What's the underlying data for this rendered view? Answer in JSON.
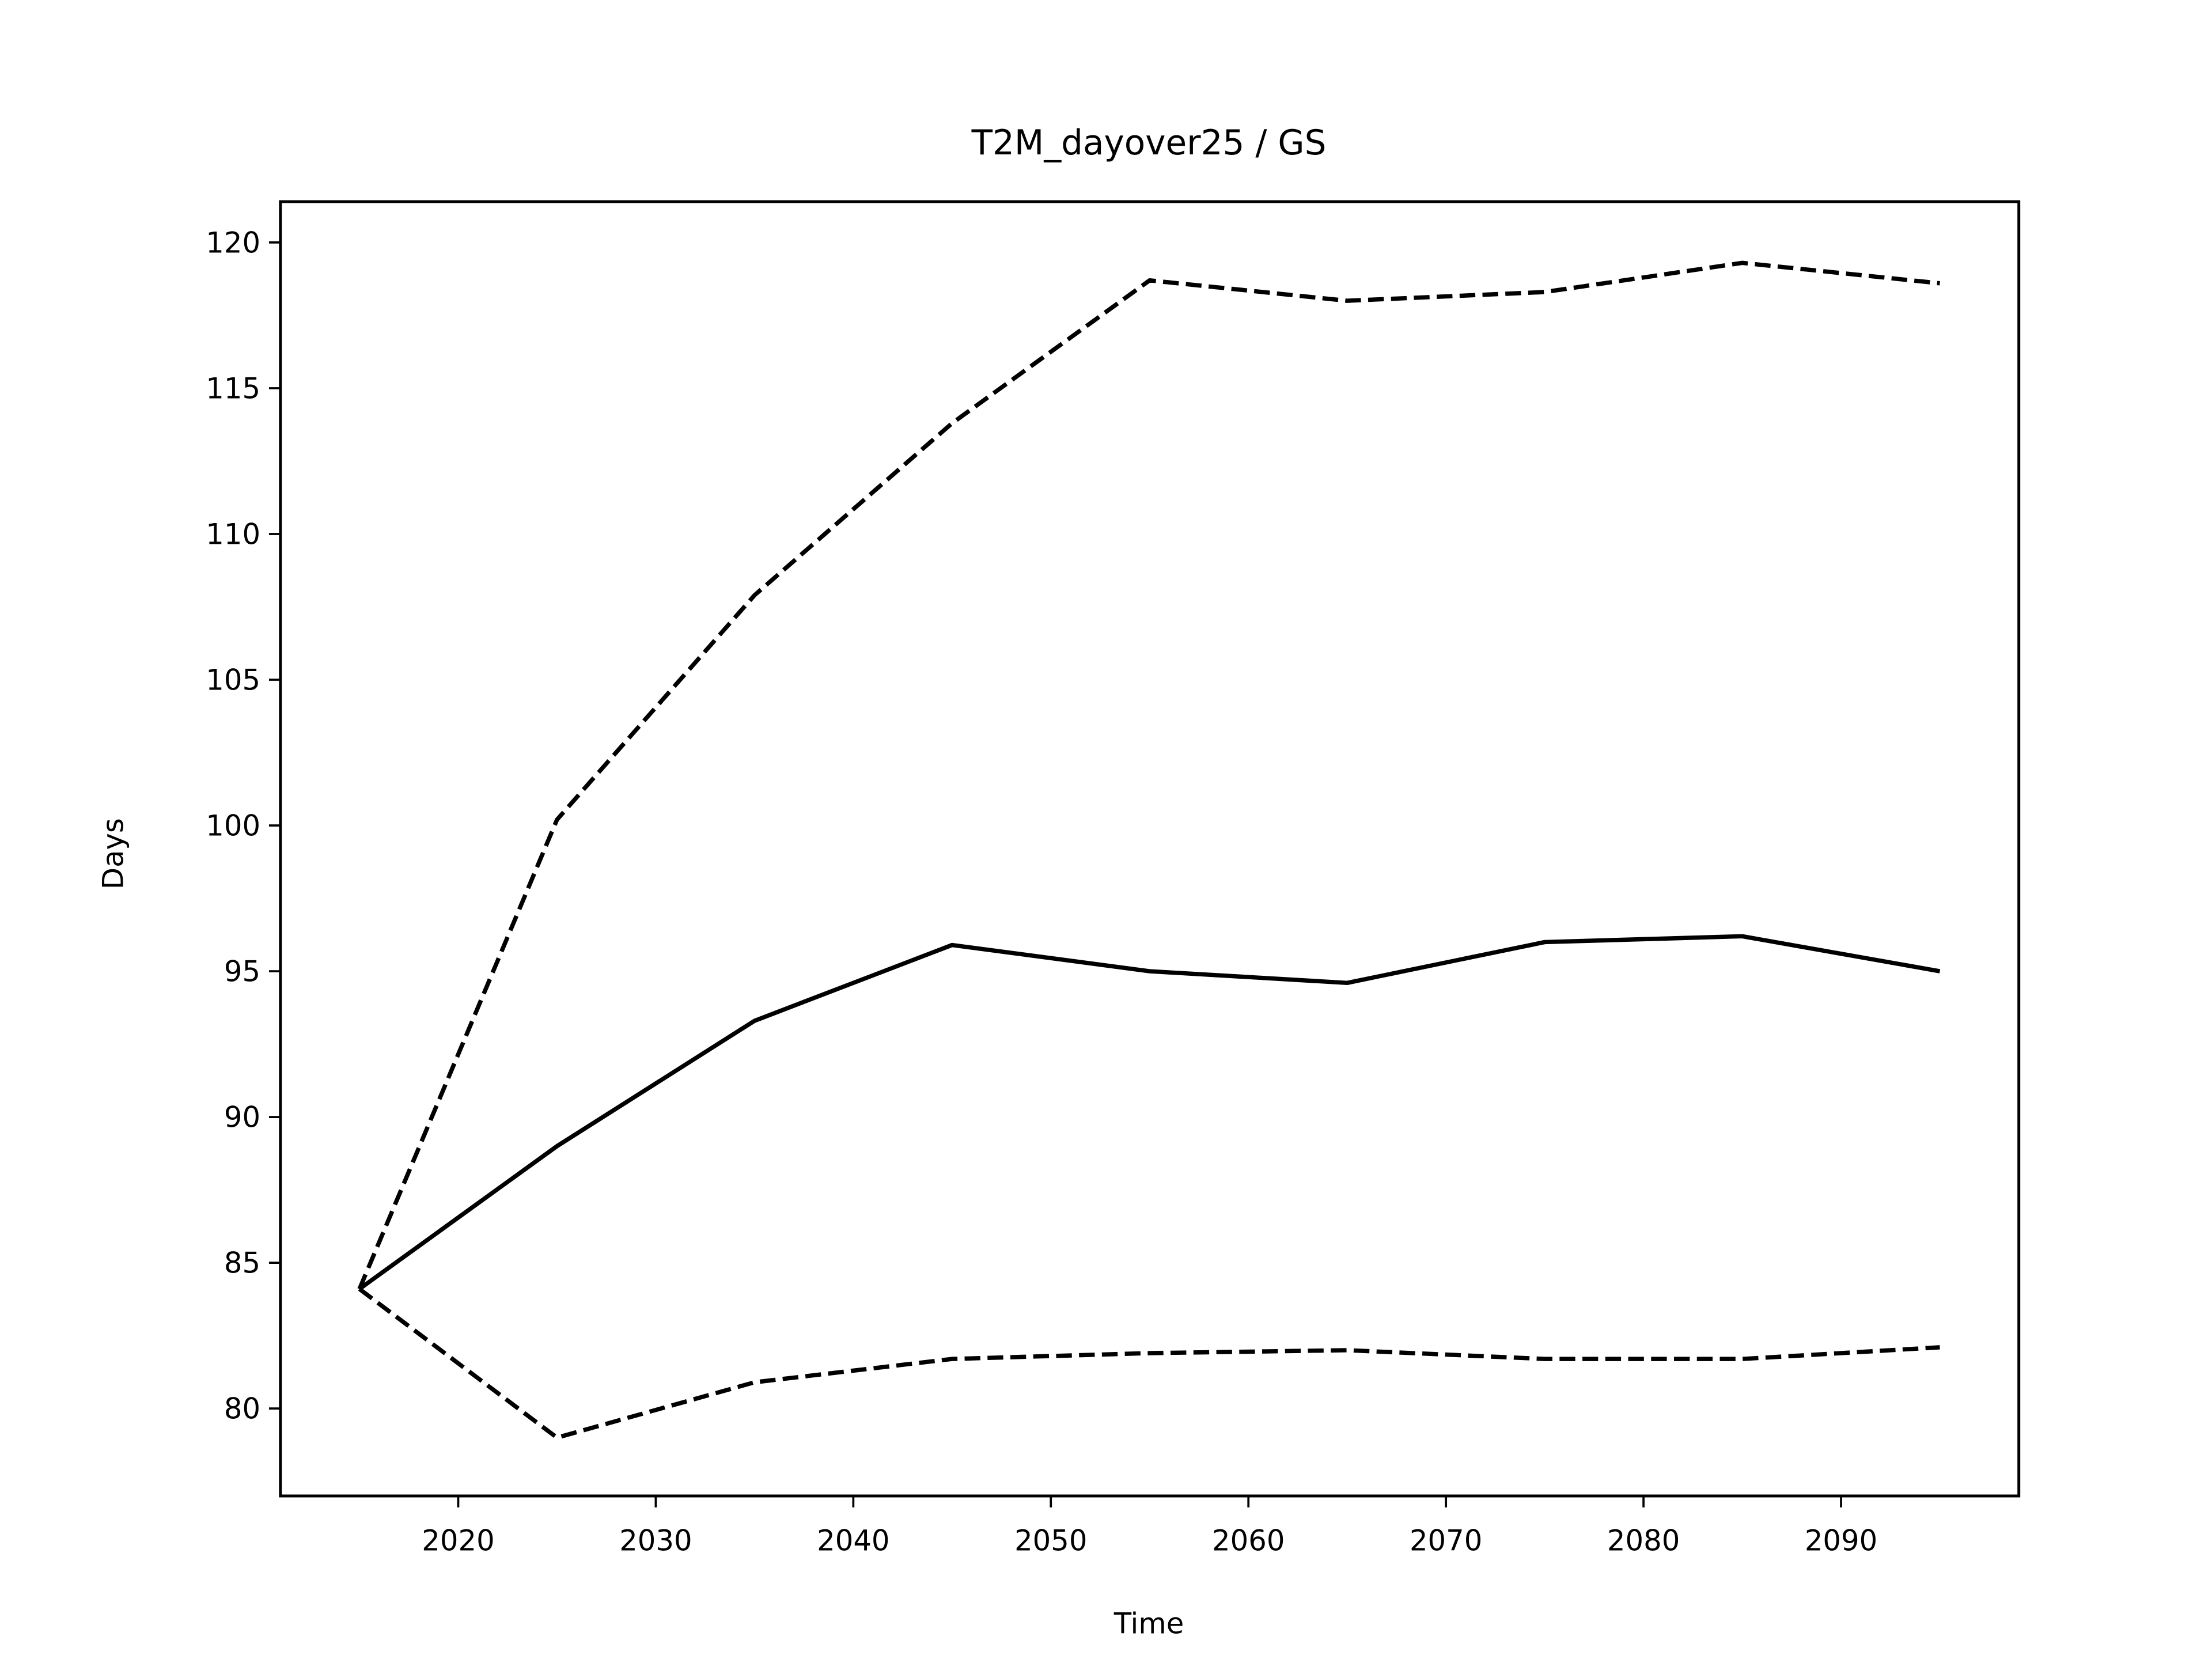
{
  "chart_data": {
    "type": "line",
    "title": "T2M_dayover25 / GS",
    "x_label": "Time",
    "y_label": "Days",
    "x": [
      2015,
      2025,
      2035,
      2045,
      2055,
      2065,
      2075,
      2085,
      2095
    ],
    "series": [
      {
        "color": "#000000",
        "linestyle": "solid",
        "values": [
          84.1,
          89.0,
          93.3,
          95.9,
          95.0,
          94.6,
          96.0,
          96.2,
          95.0
        ]
      },
      {
        "color": "#000000",
        "linestyle": "dashed",
        "values": [
          84.1,
          100.2,
          107.9,
          113.8,
          118.7,
          118.0,
          118.3,
          119.3,
          118.6
        ]
      },
      {
        "color": "#000000",
        "linestyle": "dashed",
        "values": [
          84.1,
          79.0,
          80.9,
          81.7,
          81.9,
          82.0,
          81.7,
          81.7,
          82.1
        ]
      }
    ],
    "xlim": [
      2011,
      2099
    ],
    "ylim": [
      77.0,
      121.4
    ],
    "xticks": [
      2020,
      2030,
      2040,
      2050,
      2060,
      2070,
      2080,
      2090
    ],
    "yticks": [
      80,
      85,
      90,
      95,
      100,
      105,
      110,
      115,
      120
    ],
    "grid": false
  }
}
